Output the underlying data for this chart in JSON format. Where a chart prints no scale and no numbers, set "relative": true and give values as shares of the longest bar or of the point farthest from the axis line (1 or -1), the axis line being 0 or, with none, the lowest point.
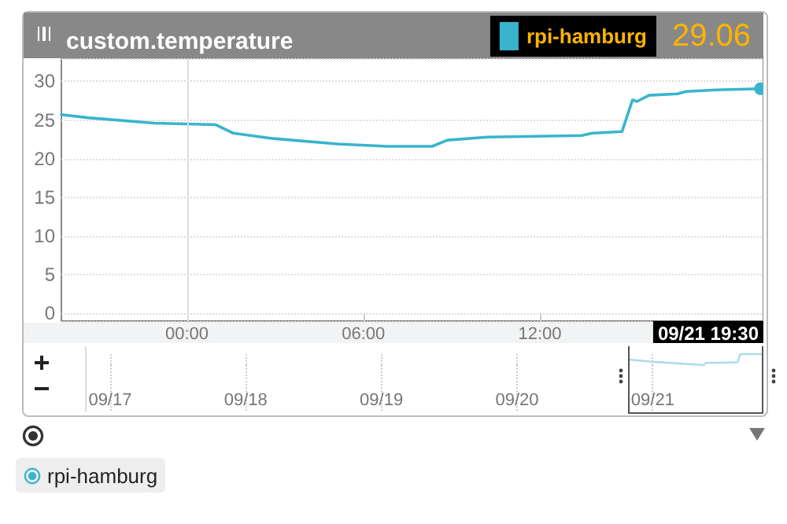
{
  "chart_data": [
    {
      "type": "line",
      "title": "custom.temperature",
      "x": [
        -4.27,
        -3.36,
        -1.12,
        0.97,
        1.58,
        2.95,
        5.13,
        6.81,
        8.34,
        8.85,
        10.22,
        13.42,
        13.78,
        14.79,
        15.15,
        15.3,
        15.71,
        16.68,
        16.98,
        18.0,
        19.5
      ],
      "series": [
        {
          "name": "rpi-hamburg",
          "color": "#3ab4cc",
          "values": [
            25.7,
            25.3,
            24.6,
            24.4,
            23.3,
            22.6,
            21.9,
            21.6,
            21.6,
            22.4,
            22.8,
            23.0,
            23.3,
            23.5,
            27.6,
            27.4,
            28.2,
            28.4,
            28.7,
            28.9,
            29.06
          ]
        }
      ],
      "xlim": [
        -4.27,
        19.6
      ],
      "xticks": [
        {
          "value": 0,
          "label": "00:00"
        },
        {
          "value": 6,
          "label": "06:00"
        },
        {
          "value": 12,
          "label": "12:00"
        }
      ],
      "ylim": [
        -1,
        33
      ],
      "yticks": [
        0,
        5,
        10,
        15,
        20,
        25,
        30
      ],
      "grid": "y",
      "legend": "top right",
      "marker": "none",
      "ref_lines": [
        {
          "axis": "x",
          "value": 0,
          "color": "#dddddd"
        }
      ],
      "annotations": [
        {
          "text": "29.06",
          "x": 19.5,
          "y": 29.06
        },
        "09/21 19:30"
      ]
    },
    {
      "type": "line",
      "relative": true,
      "x": [
        "--09-20T19:44",
        "--09-21T00:00",
        "--09-21T09:00",
        "--09-21T09:30",
        "--09-21T15:00",
        "--09-21T15:30",
        "--09-21T19:30"
      ],
      "series": [
        {
          "color": "#a8dce8",
          "values": [
            0.5,
            0.3,
            0,
            0.2,
            0.25,
            1,
            1
          ]
        }
      ],
      "xlim": [
        "--09-16T19:50",
        "--09-21T19:35"
      ],
      "xticks": [
        {
          "value": "--09-17",
          "label": "09/17"
        },
        {
          "value": "--09-18",
          "label": "09/18"
        },
        {
          "value": "--09-19",
          "label": "09/19"
        },
        {
          "value": "--09-20",
          "label": "09/20"
        },
        {
          "value": "--09-21",
          "label": "09/21"
        }
      ],
      "grid": "x",
      "tick_labels": "x"
    }
  ]
}
